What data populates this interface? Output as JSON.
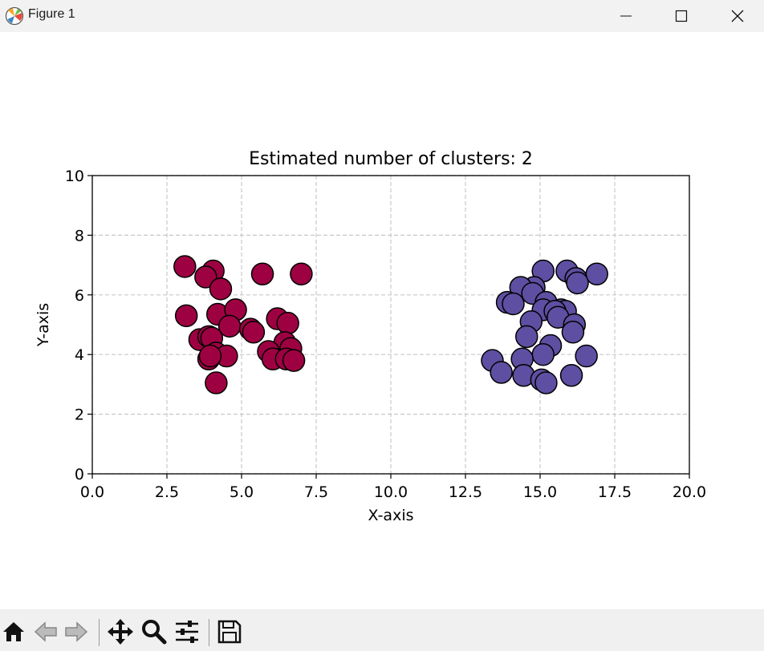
{
  "window": {
    "title": "Figure 1",
    "icons": [
      "app-icon",
      "minimize-icon",
      "maximize-icon",
      "close-icon"
    ]
  },
  "toolbar": {
    "icons": [
      "home-icon",
      "back-arrow-icon",
      "forward-arrow-icon",
      "pan-move-icon",
      "zoom-magnifier-icon",
      "configure-subplots-icon",
      "save-floppy-icon"
    ]
  },
  "chart_data": {
    "type": "scatter",
    "title": "Estimated number of clusters: 2",
    "xlabel": "X-axis",
    "ylabel": "Y-axis",
    "xlim": [
      0,
      20
    ],
    "ylim": [
      0,
      10
    ],
    "xticks": [
      "0.0",
      "2.5",
      "5.0",
      "7.5",
      "10.0",
      "12.5",
      "15.0",
      "17.5",
      "20.0"
    ],
    "yticks": [
      "0",
      "2",
      "4",
      "6",
      "8",
      "10"
    ],
    "grid": true,
    "series": [
      {
        "color": "#9e0142",
        "points": [
          [
            3.1,
            6.95
          ],
          [
            4.05,
            6.8
          ],
          [
            3.8,
            6.6
          ],
          [
            4.3,
            6.2
          ],
          [
            5.7,
            6.7
          ],
          [
            7.0,
            6.7
          ],
          [
            3.15,
            5.3
          ],
          [
            4.2,
            5.35
          ],
          [
            4.8,
            5.5
          ],
          [
            4.6,
            4.95
          ],
          [
            3.6,
            4.5
          ],
          [
            3.9,
            4.6
          ],
          [
            4.0,
            4.55
          ],
          [
            3.9,
            3.85
          ],
          [
            4.15,
            4.05
          ],
          [
            4.5,
            3.95
          ],
          [
            5.3,
            4.85
          ],
          [
            5.4,
            4.75
          ],
          [
            6.2,
            5.2
          ],
          [
            6.55,
            5.05
          ],
          [
            6.45,
            4.4
          ],
          [
            5.9,
            4.1
          ],
          [
            6.05,
            3.85
          ],
          [
            6.65,
            4.2
          ],
          [
            6.5,
            3.85
          ],
          [
            6.75,
            3.8
          ],
          [
            4.15,
            3.05
          ],
          [
            3.95,
            3.95
          ]
        ]
      },
      {
        "color": "#5e4fa2",
        "points": [
          [
            15.1,
            6.8
          ],
          [
            15.9,
            6.8
          ],
          [
            16.9,
            6.7
          ],
          [
            16.2,
            6.55
          ],
          [
            16.25,
            6.4
          ],
          [
            14.8,
            6.25
          ],
          [
            14.35,
            6.25
          ],
          [
            14.75,
            6.05
          ],
          [
            13.9,
            5.75
          ],
          [
            14.1,
            5.7
          ],
          [
            15.2,
            5.75
          ],
          [
            15.7,
            5.5
          ],
          [
            15.85,
            5.45
          ],
          [
            15.1,
            5.5
          ],
          [
            15.5,
            5.45
          ],
          [
            15.6,
            5.25
          ],
          [
            14.7,
            5.1
          ],
          [
            16.15,
            5.0
          ],
          [
            16.1,
            4.75
          ],
          [
            14.55,
            4.6
          ],
          [
            15.35,
            4.3
          ],
          [
            15.1,
            4.0
          ],
          [
            16.55,
            3.95
          ],
          [
            13.4,
            3.8
          ],
          [
            14.4,
            3.85
          ],
          [
            14.45,
            3.3
          ],
          [
            13.7,
            3.4
          ],
          [
            15.05,
            3.15
          ],
          [
            15.2,
            3.05
          ],
          [
            16.05,
            3.3
          ]
        ]
      }
    ]
  }
}
